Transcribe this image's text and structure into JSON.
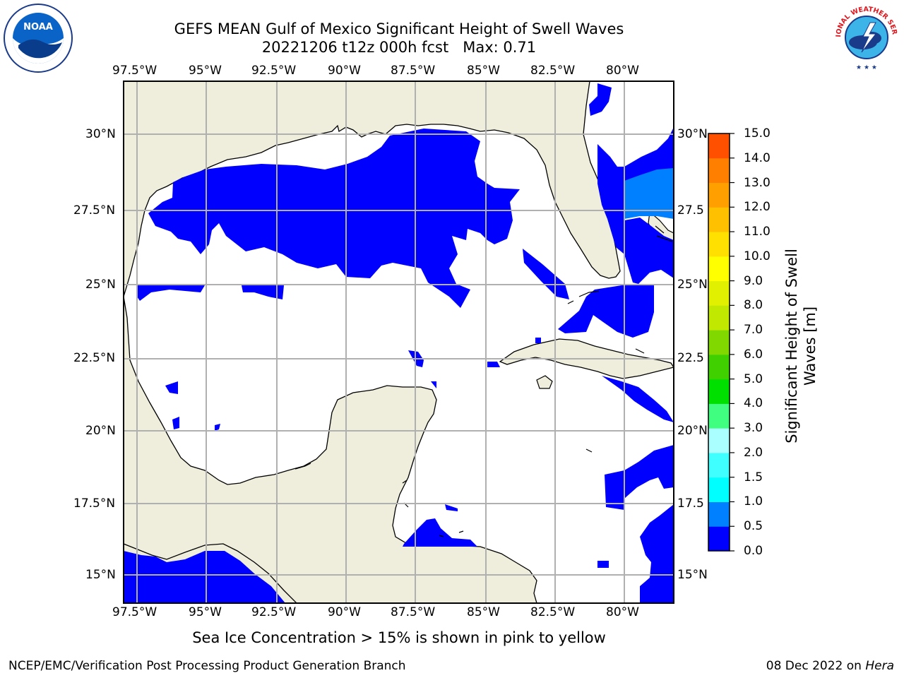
{
  "title_line1": "GEFS MEAN Gulf of Mexico Significant Height of Swell Waves",
  "title_line2": "20221206 t12z 000h fcst   Max: 0.71",
  "lon_ticks": [
    "97.5°W",
    "95°W",
    "92.5°W",
    "90°W",
    "87.5°W",
    "85°W",
    "82.5°W",
    "80°W"
  ],
  "lat_ticks": [
    "30°N",
    "27.5°N",
    "25°N",
    "22.5°N",
    "20°N",
    "17.5°N",
    "15°N"
  ],
  "lat_ticks_right": [
    "30°N",
    "27.5",
    "25°N",
    "22.5",
    "20°N",
    "17.5",
    "15°N"
  ],
  "colorbar": {
    "label_line1": "Significant Height of Swell",
    "label_line2": "Waves [m]",
    "ticks": [
      "15.0",
      "14.0",
      "13.0",
      "12.0",
      "11.0",
      "10.0",
      "9.0",
      "8.0",
      "7.0",
      "6.0",
      "5.0",
      "4.0",
      "3.0",
      "2.0",
      "1.5",
      "1.0",
      "0.5",
      "0.0"
    ],
    "colors": [
      "#0000ff",
      "#0080ff",
      "#00ccff",
      "#00ffff",
      "#40ffff",
      "#80ffff",
      "#aaffff",
      "#40ff80",
      "#00e000",
      "#40d000",
      "#80d800",
      "#c0e800",
      "#e0f000",
      "#ffff00",
      "#ffe000",
      "#ffc000",
      "#ffa000",
      "#ff8000",
      "#ff6000",
      "#ff3000",
      "#ff0000"
    ],
    "bounds": [
      0,
      0.5,
      1,
      1.5,
      2,
      3,
      4,
      5,
      6,
      7,
      8,
      9,
      10,
      11,
      12,
      13,
      14,
      15
    ]
  },
  "caption": "Sea Ice Concentration > 15% is shown in pink to yellow",
  "footer_left": "NCEP/EMC/Verification Post Processing Product Generation Branch",
  "footer_date": "08 Dec 2022 on ",
  "footer_host": "Hera",
  "logos": {
    "noaa_text": "NOAA",
    "nws_text": "NATIONAL WEATHER SERVICE"
  },
  "map": {
    "land_color": "#efeedc",
    "water_color": "#ffffff",
    "swell_color_low": "#0000ff",
    "swell_color_mid": "#0080ff",
    "grid_color": "#b0b0b0"
  }
}
